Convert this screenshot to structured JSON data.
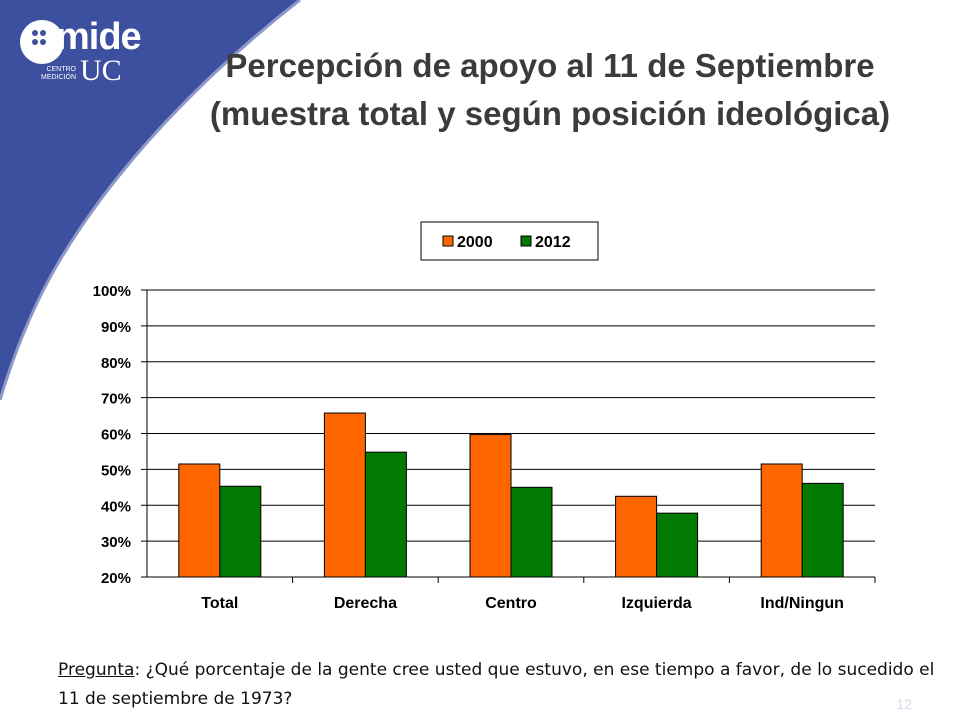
{
  "logo": {
    "name": "mide",
    "sub": "UC",
    "tag_line1": "CENTRO",
    "tag_line2": "MEDICIÓN"
  },
  "title": {
    "line1": "Percepción de apoyo al 11 de Septiembre",
    "line2": "(muestra total y según posición ideológica)"
  },
  "colors": {
    "bg_blue": "#3d4f9f",
    "series_2000": "#ff6600",
    "series_2012": "#007a00"
  },
  "chart_data": {
    "type": "bar",
    "categories": [
      "Total",
      "Derecha",
      "Centro",
      "Izquierda",
      "Ind/Ningun"
    ],
    "series": [
      {
        "name": "2000",
        "color": "#ff6600",
        "values": [
          51.5,
          65.7,
          59.7,
          42.5,
          51.5
        ]
      },
      {
        "name": "2012",
        "color": "#007a00",
        "values": [
          45.3,
          54.8,
          45.0,
          37.8,
          46.1
        ]
      }
    ],
    "ylim": [
      20,
      100
    ],
    "yticks": [
      "20%",
      "30%",
      "40%",
      "50%",
      "60%",
      "70%",
      "80%",
      "90%",
      "100%"
    ],
    "grid": true,
    "legend": "top-center"
  },
  "question": {
    "label": "Pregunta",
    "text": ": ¿Qué porcentaje de la gente cree usted que estuvo, en ese tiempo a favor, de lo sucedido el 11 de septiembre de 1973?"
  },
  "page_number": "12"
}
